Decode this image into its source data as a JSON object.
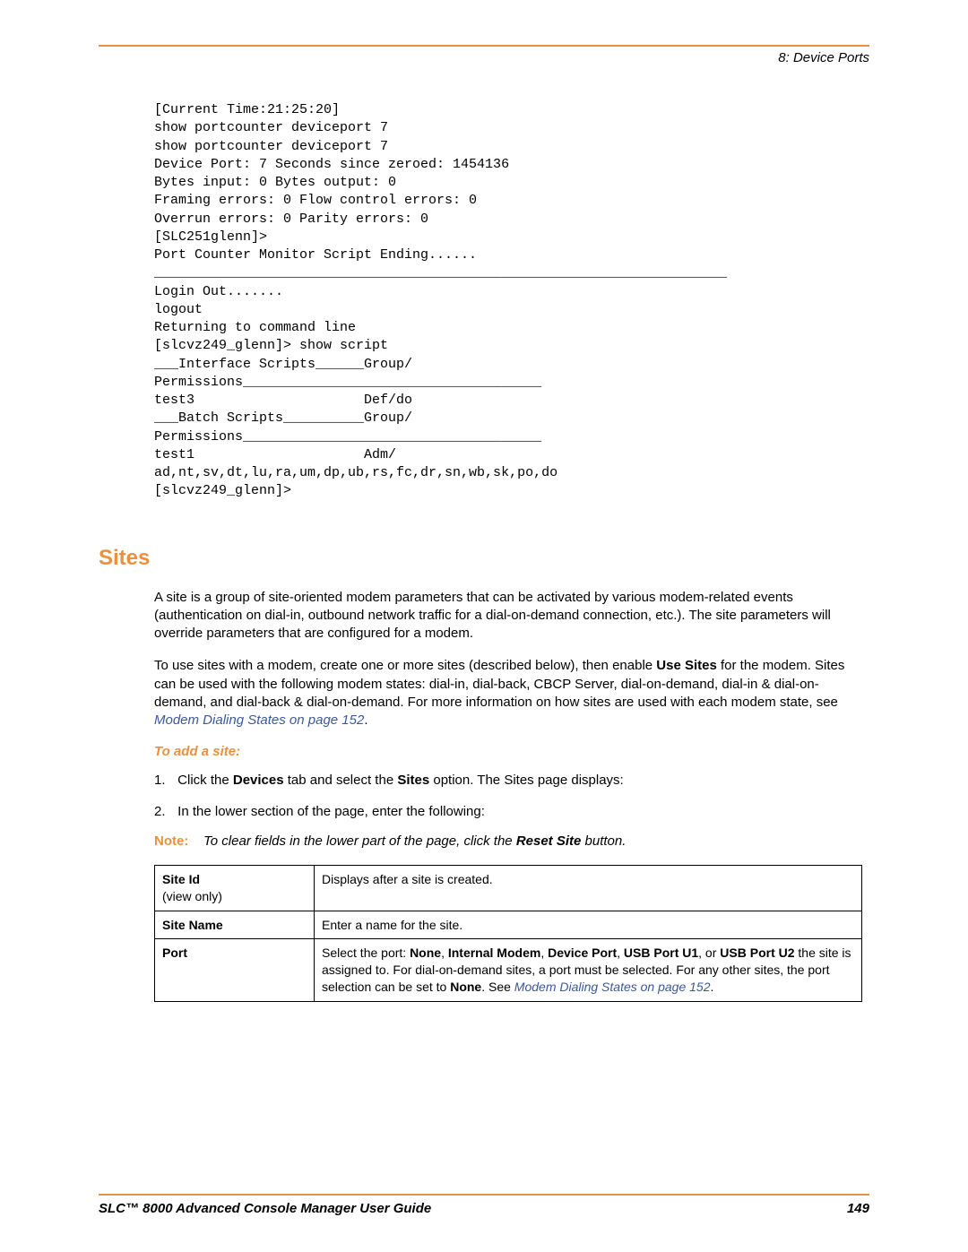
{
  "header": {
    "chapter": "8: Device Ports"
  },
  "code": {
    "text": "[Current Time:21:25:20]\nshow portcounter deviceport 7\nshow portcounter deviceport 7\nDevice Port: 7 Seconds since zeroed: 1454136\nBytes input: 0 Bytes output: 0\nFraming errors: 0 Flow control errors: 0\nOverrun errors: 0 Parity errors: 0\n[SLC251glenn]>\nPort Counter Monitor Script Ending......\n_______________________________________________________________________\nLogin Out.......\nlogout\nReturning to command line\n[slcvz249_glenn]> show script\n___Interface Scripts______Group/\nPermissions_____________________________________\ntest3                     Def/do\n___Batch Scripts__________Group/\nPermissions_____________________________________\ntest1                     Adm/\nad,nt,sv,dt,lu,ra,um,dp,ub,rs,fc,dr,sn,wb,sk,po,do\n[slcvz249_glenn]>"
  },
  "section": {
    "title": "Sites",
    "para1": "A site is a group of site-oriented modem parameters that can be activated by various modem-related events (authentication on dial-in, outbound network traffic for a dial-on-demand connection, etc.). The site parameters will override parameters that are configured for a modem.",
    "para2_pre": "To use sites with a modem, create one or more sites (described below), then enable ",
    "para2_bold": "Use Sites",
    "para2_mid": " for the modem. Sites can be used with the following modem states: dial-in, dial-back, CBCP Server, dial-on-demand, dial-in & dial-on-demand, and dial-back & dial-on-demand. For more information on how sites are used with each modem state, see ",
    "para2_link": "Modem Dialing States on page 152",
    "para2_end": ".",
    "subheading": "To add a site:",
    "step1_pre": "Click the ",
    "step1_b1": "Devices",
    "step1_mid": " tab and select the ",
    "step1_b2": "Sites",
    "step1_end": " option. The Sites page displays:",
    "step2": "In the lower section of the page, enter the following:",
    "note_label": "Note:",
    "note_pre": "To clear fields in the lower part of the page, click the ",
    "note_bold": "Reset Site",
    "note_end": " button."
  },
  "table": {
    "rows": [
      {
        "label_b": "Site Id",
        "label_plain": "(view only)",
        "desc_plain": "Displays after a site is created."
      },
      {
        "label_b": "Site Name",
        "desc_plain": "Enter a name for the site."
      },
      {
        "label_b": "Port",
        "desc_pre": "Select the port:  ",
        "desc_b1": "None",
        "desc_m1": ", ",
        "desc_b2": "Internal Modem",
        "desc_m2": ", ",
        "desc_b3": "Device Port",
        "desc_m3": ", ",
        "desc_b4": "USB Port U1",
        "desc_m4": ", or ",
        "desc_b5": "USB Port U2",
        "desc_m5": " the site is assigned to. For dial-on-demand sites, a port must be selected. For any other sites, the port selection can be set to ",
        "desc_b6": "None",
        "desc_m6": ".  See ",
        "desc_link": "Modem Dialing States on page 152",
        "desc_end": "."
      }
    ]
  },
  "footer": {
    "title": "SLC™ 8000 Advanced Console Manager User Guide",
    "page": "149"
  }
}
